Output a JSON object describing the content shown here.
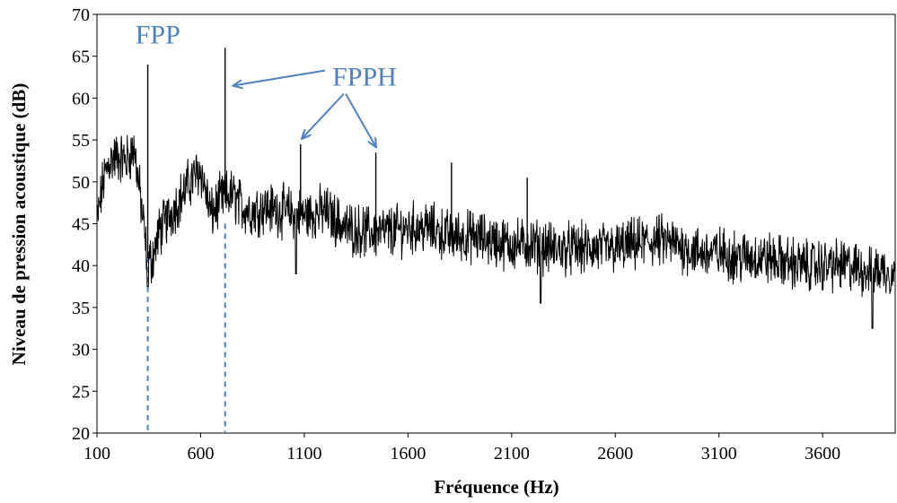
{
  "chart_data": {
    "type": "line",
    "title": "",
    "xlabel": "Fréquence (Hz)",
    "ylabel": "Niveau de pression acoustique (dB)",
    "xlim": [
      100,
      3950
    ],
    "ylim": [
      20,
      70
    ],
    "x_ticks": [
      100,
      600,
      1100,
      1600,
      2100,
      2600,
      3100,
      3600
    ],
    "y_ticks": [
      20,
      25,
      30,
      35,
      40,
      45,
      50,
      55,
      60,
      65,
      70
    ],
    "grid": false,
    "legend": "none",
    "line_color": "#000000",
    "annotation_color": "#4f81bd",
    "trend": {
      "x": [
        100,
        130,
        160,
        200,
        240,
        280,
        300,
        320,
        340,
        360,
        380,
        400,
        450,
        500,
        550,
        600,
        650,
        700,
        750,
        800,
        850,
        900,
        1000,
        1100,
        1200,
        1300,
        1400,
        1500,
        1600,
        1700,
        1800,
        1900,
        2000,
        2100,
        2200,
        2300,
        2400,
        2500,
        2600,
        2700,
        2800,
        2900,
        3000,
        3100,
        3200,
        3300,
        3400,
        3500,
        3600,
        3700,
        3800,
        3900,
        3950
      ],
      "y": [
        45,
        50,
        52.5,
        53,
        52.5,
        54,
        50,
        46,
        41,
        40.5,
        42,
        44,
        46,
        48,
        50,
        51.5,
        46,
        48,
        48.5,
        47,
        46.5,
        47,
        46.5,
        46,
        46.5,
        44.5,
        44,
        44,
        44.5,
        44.5,
        43.5,
        43.5,
        43,
        42.5,
        42.5,
        42,
        42,
        42,
        42,
        42.5,
        43,
        42.5,
        41.5,
        41.5,
        41,
        41,
        40.5,
        40,
        40,
        40,
        39.5,
        39.5,
        39
      ]
    },
    "noise_amplitude_db": 2.5,
    "peaks": [
      {
        "x": 345,
        "y": 64
      },
      {
        "x": 718,
        "y": 66
      },
      {
        "x": 1082,
        "y": 54.5
      },
      {
        "x": 1445,
        "y": 53.5
      },
      {
        "x": 1810,
        "y": 52.3
      },
      {
        "x": 2175,
        "y": 50.5
      }
    ],
    "dips": [
      {
        "x": 345,
        "y": 37.5
      },
      {
        "x": 1060,
        "y": 39
      },
      {
        "x": 2240,
        "y": 35.5
      },
      {
        "x": 3840,
        "y": 32.5
      }
    ],
    "marker_lines": [
      {
        "x": 345,
        "y_top": 41
      },
      {
        "x": 718,
        "y_top": 45
      }
    ],
    "annotations": [
      {
        "label": "FPP",
        "x": 285,
        "y": 66.5
      },
      {
        "label": "FPPH",
        "x": 1235,
        "y": 61.5
      }
    ],
    "arrows": [
      {
        "from": [
          1200,
          63.3
        ],
        "to": [
          760,
          61.5
        ]
      },
      {
        "from": [
          1290,
          60.5
        ],
        "to": [
          1090,
          55.2
        ]
      },
      {
        "from": [
          1300,
          60.5
        ],
        "to": [
          1445,
          54.2
        ]
      }
    ]
  }
}
